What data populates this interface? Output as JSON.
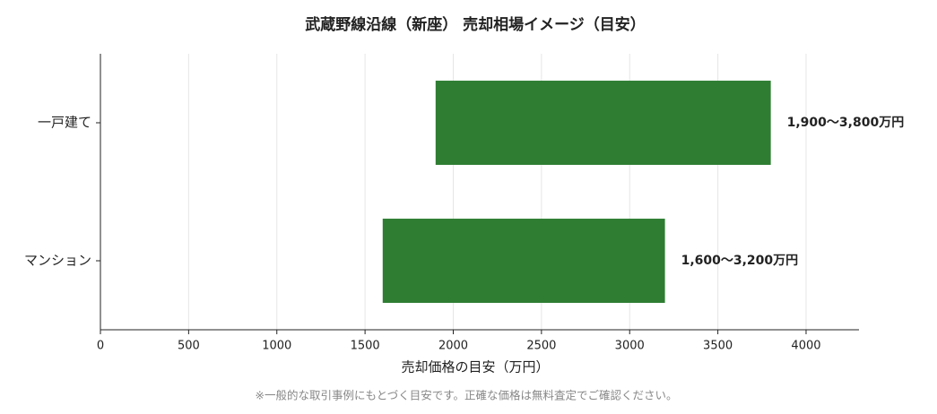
{
  "chart_data": {
    "type": "bar",
    "title": "武蔵野線沿線（新座） 売却相場イメージ（目安）",
    "categories": [
      "一戸建て",
      "マンション"
    ],
    "low": [
      1900,
      1600
    ],
    "high": [
      3800,
      3200
    ],
    "value_labels": [
      "1,900～3,800万円",
      "1,600～3,200万円"
    ],
    "color": "#2e7d32",
    "xlabel": "売却価格の目安（万円）",
    "xlim": [
      0,
      4300
    ],
    "xticks": [
      0,
      500,
      1000,
      1500,
      2000,
      2500,
      3000,
      3500,
      4000
    ],
    "grid": true,
    "note": "※一般的な取引事例にもとづく目安です。正確な価格は無料査定でご確認ください。"
  }
}
